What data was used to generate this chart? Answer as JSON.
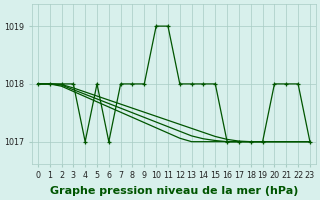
{
  "title": "Graphe pression niveau de la mer (hPa)",
  "xlabel_hours": [
    0,
    1,
    2,
    3,
    4,
    5,
    6,
    7,
    8,
    9,
    10,
    11,
    12,
    13,
    14,
    15,
    16,
    17,
    18,
    19,
    20,
    21,
    22,
    23
  ],
  "ylim": [
    1016.62,
    1019.38
  ],
  "yticks": [
    1017,
    1018,
    1019
  ],
  "bg_color": "#d8f0ec",
  "grid_color": "#a8ccc4",
  "line_color": "#005500",
  "series": [
    [
      1018,
      1018,
      1018,
      1018,
      1017,
      1018,
      1017,
      1018,
      1018,
      1018,
      1019,
      1019,
      1018,
      1018,
      1018,
      1018,
      1017,
      1017,
      1017,
      1017,
      1018,
      1018,
      1018,
      1017
    ],
    [
      1018.0,
      1018.0,
      1017.96,
      1017.87,
      1017.78,
      1017.69,
      1017.6,
      1017.51,
      1017.42,
      1017.33,
      1017.24,
      1017.15,
      1017.06,
      1017.0,
      1017.0,
      1017.0,
      1017.0,
      1017.0,
      1017.0,
      1017.0,
      1017.0,
      1017.0,
      1017.0,
      1017.0
    ],
    [
      1018.0,
      1018.0,
      1017.98,
      1017.9,
      1017.82,
      1017.74,
      1017.66,
      1017.58,
      1017.5,
      1017.42,
      1017.34,
      1017.26,
      1017.18,
      1017.1,
      1017.05,
      1017.02,
      1017.0,
      1017.0,
      1017.0,
      1017.0,
      1017.0,
      1017.0,
      1017.0,
      1017.0
    ],
    [
      1018.0,
      1018.0,
      1017.99,
      1017.93,
      1017.86,
      1017.79,
      1017.72,
      1017.65,
      1017.58,
      1017.51,
      1017.44,
      1017.37,
      1017.3,
      1017.23,
      1017.16,
      1017.09,
      1017.04,
      1017.01,
      1017.0,
      1017.0,
      1017.0,
      1017.0,
      1017.0,
      1017.0
    ]
  ],
  "marker": "+",
  "markersize": 3.5,
  "linewidth": 0.9,
  "title_fontsize": 8,
  "tick_fontsize": 5.8,
  "fig_bg": "#d8f0ec"
}
